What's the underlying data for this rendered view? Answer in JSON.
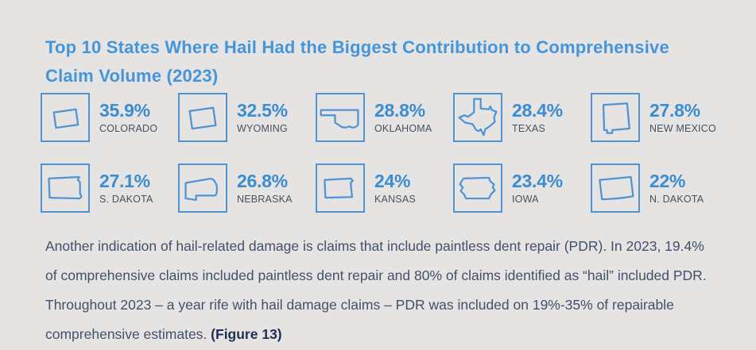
{
  "header": {
    "title_line1": "Top 10 States Where Hail Had the Biggest Contribution to Comprehensive",
    "title_line2": "Claim Volume (2023)"
  },
  "states": [
    {
      "name": "COLORADO",
      "percent": "35.9%",
      "icon": "colorado-outline-icon"
    },
    {
      "name": "WYOMING",
      "percent": "32.5%",
      "icon": "wyoming-outline-icon"
    },
    {
      "name": "OKLAHOMA",
      "percent": "28.8%",
      "icon": "oklahoma-outline-icon"
    },
    {
      "name": "TEXAS",
      "percent": "28.4%",
      "icon": "texas-outline-icon"
    },
    {
      "name": "NEW MEXICO",
      "percent": "27.8%",
      "icon": "new-mexico-outline-icon"
    },
    {
      "name": "S. DAKOTA",
      "percent": "27.1%",
      "icon": "s-dakota-outline-icon"
    },
    {
      "name": "NEBRASKA",
      "percent": "26.8%",
      "icon": "nebraska-outline-icon"
    },
    {
      "name": "KANSAS",
      "percent": "24%",
      "icon": "kansas-outline-icon"
    },
    {
      "name": "IOWA",
      "percent": "23.4%",
      "icon": "iowa-outline-icon"
    },
    {
      "name": "N. DAKOTA",
      "percent": "22%",
      "icon": "n-dakota-outline-icon"
    }
  ],
  "paragraph": {
    "lines": [
      "Another indication of hail-related damage is claims that include paintless dent repair (PDR). In 2023, 19.4%",
      "of comprehensive claims included paintless dent repair and 80% of claims identified as “hail” included PDR.",
      "Throughout 2023 – a year rife with hail damage claims – PDR was included on 19%-35% of repairable",
      "comprehensive estimates."
    ],
    "figure_ref": "(Figure 13)"
  },
  "colors": {
    "background": "#E5E4E2",
    "title_blue": "#4495DA",
    "percent_blue": "#3C8CD2",
    "outline_blue": "#4E94D5",
    "state_name_text": "#47515D",
    "paragraph_text": "#44506B",
    "figure_ref_text": "#1F3054"
  },
  "chart_data": {
    "type": "table",
    "title": "Top 10 States Where Hail Had the Biggest Contribution to Comprehensive Claim Volume (2023)",
    "categories": [
      "Colorado",
      "Wyoming",
      "Oklahoma",
      "Texas",
      "New Mexico",
      "S. Dakota",
      "Nebraska",
      "Kansas",
      "Iowa",
      "N. Dakota"
    ],
    "values": [
      35.9,
      32.5,
      28.8,
      28.4,
      27.8,
      27.1,
      26.8,
      24,
      23.4,
      22
    ],
    "unit": "%",
    "note": "Another indication of hail-related damage is claims that include paintless dent repair (PDR). In 2023, 19.4% of comprehensive claims included paintless dent repair and 80% of claims identified as “hail” included PDR. Throughout 2023 – a year rife with hail damage claims – PDR was included on 19%-35% of repairable comprehensive estimates. (Figure 13)"
  }
}
